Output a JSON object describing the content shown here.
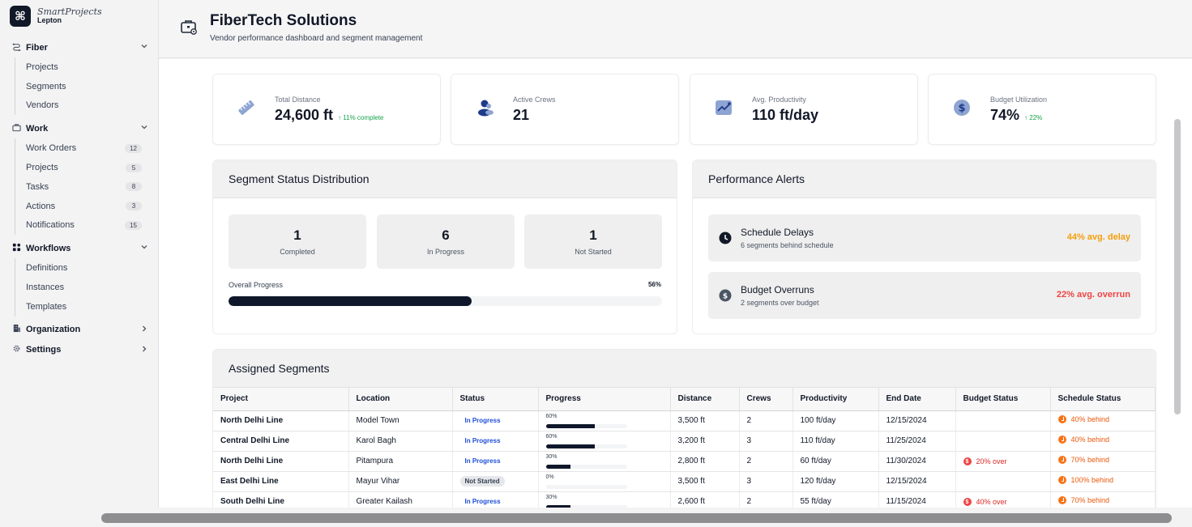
{
  "brand": {
    "logo_glyph": "⌘",
    "name": "SmartProjects",
    "sub": "Lepton"
  },
  "sidebar": {
    "groups": [
      {
        "label": "Fiber",
        "icon": "route-icon",
        "expanded": true,
        "items": [
          {
            "label": "Projects"
          },
          {
            "label": "Segments"
          },
          {
            "label": "Vendors"
          }
        ]
      },
      {
        "label": "Work",
        "icon": "briefcase-icon",
        "expanded": true,
        "items": [
          {
            "label": "Work Orders",
            "badge": "12"
          },
          {
            "label": "Projects",
            "badge": "5"
          },
          {
            "label": "Tasks",
            "badge": "8"
          },
          {
            "label": "Actions",
            "badge": "3"
          },
          {
            "label": "Notifications",
            "badge": "15"
          }
        ]
      },
      {
        "label": "Workflows",
        "icon": "grid-icon",
        "expanded": true,
        "items": [
          {
            "label": "Definitions"
          },
          {
            "label": "Instances"
          },
          {
            "label": "Templates"
          }
        ]
      },
      {
        "label": "Organization",
        "icon": "building-icon",
        "expanded": false,
        "items": []
      },
      {
        "label": "Settings",
        "icon": "gear-icon",
        "expanded": false,
        "items": []
      }
    ]
  },
  "header": {
    "title": "FiberTech Solutions",
    "subtitle": "Vendor performance dashboard and segment management"
  },
  "stats": [
    {
      "label": "Total Distance",
      "value": "24,600 ft",
      "change": "↑ 11% complete",
      "icon": "ruler-icon"
    },
    {
      "label": "Active Crews",
      "value": "21",
      "change": "",
      "icon": "users-icon"
    },
    {
      "label": "Avg. Productivity",
      "value": "110 ft/day",
      "change": "",
      "icon": "trend-chart-icon"
    },
    {
      "label": "Budget Utilization",
      "value": "74%",
      "change": "↑ 22%",
      "icon": "dollar-icon"
    }
  ],
  "segment_status": {
    "title": "Segment Status Distribution",
    "boxes": [
      {
        "count": "1",
        "label": "Completed"
      },
      {
        "count": "6",
        "label": "In Progress"
      },
      {
        "count": "1",
        "label": "Not Started"
      }
    ],
    "overall_label": "Overall Progress",
    "overall_pct": "56%",
    "overall_fraction": 0.56
  },
  "alerts": {
    "title": "Performance Alerts",
    "items": [
      {
        "title": "Schedule Delays",
        "desc": "6 segments behind schedule",
        "metric": "44% avg. delay",
        "color": "#f59e0b",
        "icon": "clock-icon"
      },
      {
        "title": "Budget Overruns",
        "desc": "2 segments over budget",
        "metric": "22% avg. overrun",
        "color": "#ef4444",
        "icon": "dollar-icon"
      }
    ]
  },
  "segments": {
    "title": "Assigned Segments",
    "columns": [
      "Project",
      "Location",
      "Status",
      "Progress",
      "Distance",
      "Crews",
      "Productivity",
      "End Date",
      "Budget Status",
      "Schedule Status"
    ],
    "rows": [
      {
        "project": "North Delhi Line",
        "location": "Model Town",
        "status": "In Progress",
        "progress": "60%",
        "progress_fraction": 0.6,
        "distance": "3,500 ft",
        "crews": "2",
        "productivity": "100 ft/day",
        "end_date": "12/15/2024",
        "budget": "",
        "schedule": "40% behind"
      },
      {
        "project": "Central Delhi Line",
        "location": "Karol Bagh",
        "status": "In Progress",
        "progress": "60%",
        "progress_fraction": 0.6,
        "distance": "3,200 ft",
        "crews": "3",
        "productivity": "110 ft/day",
        "end_date": "11/25/2024",
        "budget": "",
        "schedule": "40% behind"
      },
      {
        "project": "North Delhi Line",
        "location": "Pitampura",
        "status": "In Progress",
        "progress": "30%",
        "progress_fraction": 0.3,
        "distance": "2,800 ft",
        "crews": "2",
        "productivity": "60 ft/day",
        "end_date": "11/30/2024",
        "budget": "20% over",
        "schedule": "70% behind"
      },
      {
        "project": "East Delhi Line",
        "location": "Mayur Vihar",
        "status": "Not Started",
        "progress": "0%",
        "progress_fraction": 0,
        "distance": "3,500 ft",
        "crews": "3",
        "productivity": "120 ft/day",
        "end_date": "12/15/2024",
        "budget": "",
        "schedule": "100% behind"
      },
      {
        "project": "South Delhi Line",
        "location": "Greater Kailash",
        "status": "In Progress",
        "progress": "30%",
        "progress_fraction": 0.3,
        "distance": "2,600 ft",
        "crews": "2",
        "productivity": "55 ft/day",
        "end_date": "11/15/2024",
        "budget": "40% over",
        "schedule": "70% behind"
      }
    ]
  }
}
